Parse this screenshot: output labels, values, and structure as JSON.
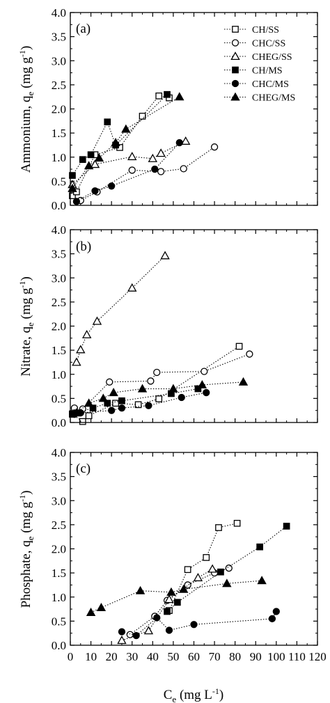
{
  "chart_data": [
    {
      "type": "scatter",
      "panel_label": "(a)",
      "ylabel": "Ammonium, q",
      "ylabel_sub": "e",
      "ylabel_unit": "(mg g",
      "ylabel_unit_sup": "-1",
      "ylabel_unit_end": ")",
      "xlim": [
        0,
        120
      ],
      "ylim": [
        0,
        4.0
      ],
      "y_ticks": [
        "0.0",
        "0.5",
        "1.0",
        "1.5",
        "2.0",
        "2.5",
        "3.0",
        "3.5",
        "4.0"
      ],
      "legend_position": "top-right",
      "series": [
        {
          "name": "CH/SS",
          "marker": "open-square",
          "x": [
            1,
            3,
            12,
            24,
            35,
            43,
            48
          ],
          "y": [
            0.2,
            0.28,
            1.05,
            1.2,
            1.85,
            2.27,
            2.23
          ]
        },
        {
          "name": "CHC/SS",
          "marker": "open-circle",
          "x": [
            5,
            13,
            30,
            44,
            55,
            70
          ],
          "y": [
            0.1,
            0.28,
            0.73,
            0.7,
            0.76,
            1.21
          ]
        },
        {
          "name": "CHEG/SS",
          "marker": "open-triangle",
          "x": [
            1,
            12,
            30,
            40,
            44,
            56
          ],
          "y": [
            0.43,
            0.85,
            1.01,
            0.97,
            1.08,
            1.33
          ]
        },
        {
          "name": "CH/MS",
          "marker": "filled-square",
          "x": [
            1,
            6,
            10,
            18,
            22,
            47
          ],
          "y": [
            0.62,
            0.95,
            1.05,
            1.73,
            1.25,
            2.3
          ]
        },
        {
          "name": "CHC/MS",
          "marker": "filled-circle",
          "x": [
            3,
            12,
            20,
            41,
            53
          ],
          "y": [
            0.08,
            0.3,
            0.4,
            0.75,
            1.3
          ]
        },
        {
          "name": "CHEG/MS",
          "marker": "filled-triangle",
          "x": [
            1,
            9,
            14,
            22,
            27,
            53
          ],
          "y": [
            0.35,
            0.82,
            0.98,
            1.3,
            1.58,
            2.25
          ]
        }
      ]
    },
    {
      "type": "scatter",
      "panel_label": "(b)",
      "ylabel": "Nitrate, q",
      "ylabel_sub": "e",
      "ylabel_unit": "(mg g",
      "ylabel_unit_sup": "-1",
      "ylabel_unit_end": ")",
      "xlim": [
        0,
        120
      ],
      "ylim": [
        0,
        4.0
      ],
      "y_ticks": [
        "0.0",
        "0.5",
        "1.0",
        "1.5",
        "2.0",
        "2.5",
        "3.0",
        "3.5",
        "4.0"
      ],
      "series": [
        {
          "name": "CH/SS",
          "marker": "open-square",
          "x": [
            1,
            6,
            9,
            22,
            33,
            43,
            82
          ],
          "y": [
            0.17,
            0.02,
            0.14,
            0.4,
            0.37,
            0.49,
            1.58
          ]
        },
        {
          "name": "CHC/SS",
          "marker": "open-circle",
          "x": [
            2,
            6,
            19,
            39,
            42,
            65,
            87
          ],
          "y": [
            0.3,
            0.28,
            0.84,
            0.86,
            1.04,
            1.06,
            1.42
          ]
        },
        {
          "name": "CHEG/SS",
          "marker": "open-triangle",
          "x": [
            3,
            5,
            8,
            13,
            30,
            46
          ],
          "y": [
            1.25,
            1.51,
            1.82,
            2.1,
            2.79,
            3.46
          ]
        },
        {
          "name": "CH/MS",
          "marker": "filled-square",
          "x": [
            1,
            3,
            11,
            18,
            25,
            49,
            62
          ],
          "y": [
            0.18,
            0.2,
            0.3,
            0.4,
            0.45,
            0.6,
            0.7
          ]
        },
        {
          "name": "CHC/MS",
          "marker": "filled-circle",
          "x": [
            2,
            5,
            20,
            25,
            38,
            54,
            66
          ],
          "y": [
            0.17,
            0.2,
            0.25,
            0.3,
            0.35,
            0.52,
            0.62
          ]
        },
        {
          "name": "CHEG/MS",
          "marker": "filled-triangle",
          "x": [
            3,
            9,
            16,
            21,
            35,
            50,
            64,
            84
          ],
          "y": [
            0.2,
            0.4,
            0.5,
            0.62,
            0.7,
            0.7,
            0.78,
            0.84
          ]
        }
      ]
    },
    {
      "type": "scatter",
      "panel_label": "(c)",
      "ylabel": "Phosphate, q",
      "ylabel_sub": "e",
      "ylabel_unit": "(mg g",
      "ylabel_unit_sup": "-1",
      "ylabel_unit_end": ")",
      "xlabel": "C",
      "xlabel_sub": "e",
      "xlabel_unit": "(mg L",
      "xlabel_unit_sup": "-1",
      "xlabel_unit_end": ")",
      "xlim": [
        0,
        120
      ],
      "ylim": [
        0,
        4.0
      ],
      "x_ticks": [
        "0",
        "10",
        "20",
        "30",
        "40",
        "50",
        "60",
        "70",
        "80",
        "90",
        "100",
        "110",
        "120"
      ],
      "y_ticks": [
        "0.0",
        "0.5",
        "1.0",
        "1.5",
        "2.0",
        "2.5",
        "3.0",
        "3.5",
        "4.0"
      ],
      "series": [
        {
          "name": "CH/SS",
          "marker": "open-square",
          "x": [
            48,
            57,
            66,
            72,
            81
          ],
          "y": [
            0.72,
            1.57,
            1.82,
            2.44,
            2.53
          ]
        },
        {
          "name": "CHC/SS",
          "marker": "open-circle",
          "x": [
            29,
            41,
            47,
            57,
            70,
            77
          ],
          "y": [
            0.22,
            0.6,
            0.93,
            1.25,
            1.5,
            1.6
          ]
        },
        {
          "name": "CHEG/SS",
          "marker": "open-triangle",
          "x": [
            25,
            38,
            48,
            62,
            69
          ],
          "y": [
            0.1,
            0.3,
            0.95,
            1.4,
            1.58
          ]
        },
        {
          "name": "CH/MS",
          "marker": "filled-square",
          "x": [
            47,
            52,
            73,
            92,
            105
          ],
          "y": [
            0.7,
            0.89,
            1.52,
            2.04,
            2.47
          ]
        },
        {
          "name": "CHC/MS",
          "marker": "filled-circle",
          "x": [
            25,
            32,
            42,
            48,
            60,
            98,
            100
          ],
          "y": [
            0.28,
            0.2,
            0.57,
            0.31,
            0.43,
            0.55,
            0.7
          ]
        },
        {
          "name": "CHEG/MS",
          "marker": "filled-triangle",
          "x": [
            10,
            15,
            34,
            49,
            55,
            76,
            93
          ],
          "y": [
            0.68,
            0.78,
            1.13,
            1.1,
            1.16,
            1.28,
            1.34
          ]
        }
      ]
    }
  ]
}
